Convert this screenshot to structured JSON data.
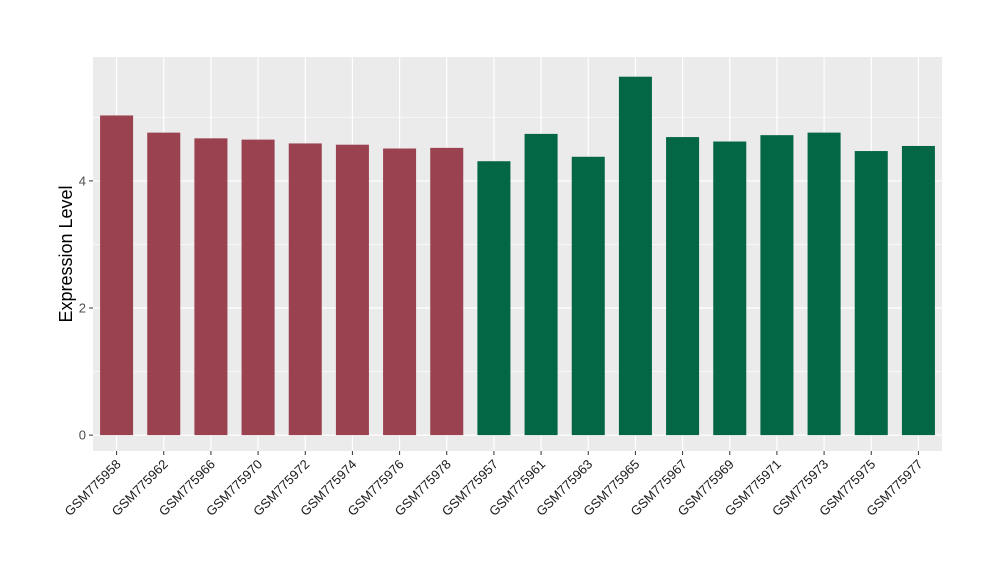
{
  "chart_data": {
    "type": "bar",
    "title": "",
    "xlabel": "",
    "ylabel": "Expression Level",
    "ylim": [
      -0.25,
      5.95
    ],
    "yticks": [
      0,
      2,
      4
    ],
    "grid": true,
    "legend": "none",
    "colors": {
      "panel": "#EBEBEB",
      "grid": "#FFFFFF",
      "group_a": "#9A424F",
      "group_b": "#036745"
    },
    "categories": [
      "GSM775958",
      "GSM775962",
      "GSM775966",
      "GSM775970",
      "GSM775972",
      "GSM775974",
      "GSM775976",
      "GSM775978",
      "GSM775957",
      "GSM775961",
      "GSM775963",
      "GSM775965",
      "GSM775967",
      "GSM775969",
      "GSM775971",
      "GSM775973",
      "GSM775975",
      "GSM775977"
    ],
    "values": [
      5.03,
      4.76,
      4.67,
      4.65,
      4.59,
      4.57,
      4.51,
      4.52,
      4.31,
      4.74,
      4.38,
      5.64,
      4.69,
      4.62,
      4.72,
      4.76,
      4.47,
      4.55
    ],
    "bar_color_keys": [
      "group_a",
      "group_a",
      "group_a",
      "group_a",
      "group_a",
      "group_a",
      "group_a",
      "group_a",
      "group_b",
      "group_b",
      "group_b",
      "group_b",
      "group_b",
      "group_b",
      "group_b",
      "group_b",
      "group_b",
      "group_b"
    ]
  }
}
